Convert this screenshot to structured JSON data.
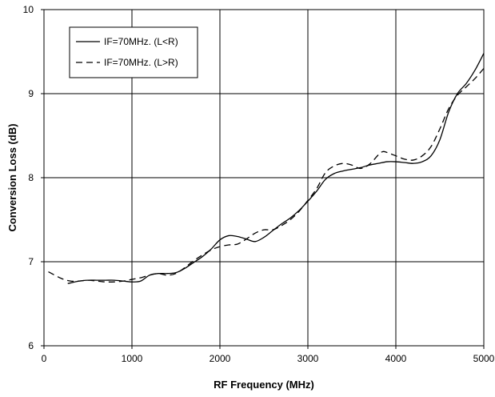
{
  "chart_data": {
    "type": "line",
    "xlabel": "RF Frequency (MHz)",
    "ylabel": "Conversion Loss (dB)",
    "xlim": [
      0,
      5000
    ],
    "ylim": [
      6,
      10
    ],
    "xticks": [
      0,
      1000,
      2000,
      3000,
      4000,
      5000
    ],
    "yticks": [
      6,
      7,
      8,
      9,
      10
    ],
    "xtick_labels": [
      "0",
      "1000",
      "2000",
      "3000",
      "4000",
      "5000"
    ],
    "ytick_labels": [
      "6",
      "7",
      "8",
      "9",
      "10"
    ],
    "grid": true,
    "legend_position": "top-left",
    "series": [
      {
        "name": "IF=70MHz. (L<R)",
        "style": "solid",
        "color": "#000000",
        "x": [
          270,
          400,
          500,
          600,
          700,
          800,
          900,
          1000,
          1100,
          1200,
          1300,
          1400,
          1500,
          1600,
          1700,
          1800,
          1900,
          2000,
          2100,
          2200,
          2300,
          2400,
          2500,
          2600,
          2700,
          2800,
          2900,
          3000,
          3100,
          3200,
          3300,
          3400,
          3500,
          3600,
          3700,
          3800,
          3900,
          4000,
          4100,
          4200,
          4300,
          4400,
          4500,
          4600,
          4700,
          4800,
          4900,
          5000
        ],
        "y": [
          6.74,
          6.77,
          6.78,
          6.78,
          6.78,
          6.78,
          6.77,
          6.76,
          6.77,
          6.84,
          6.86,
          6.86,
          6.87,
          6.92,
          6.99,
          7.06,
          7.15,
          7.26,
          7.31,
          7.3,
          7.27,
          7.24,
          7.29,
          7.37,
          7.45,
          7.52,
          7.61,
          7.72,
          7.84,
          7.98,
          8.05,
          8.08,
          8.1,
          8.12,
          8.15,
          8.17,
          8.19,
          8.19,
          8.18,
          8.17,
          8.19,
          8.26,
          8.45,
          8.78,
          9.0,
          9.12,
          9.28,
          9.48
        ]
      },
      {
        "name": "IF=70MHz. (L>R)",
        "style": "dashed",
        "color": "#000000",
        "x": [
          50,
          200,
          300,
          400,
          500,
          600,
          700,
          800,
          900,
          1000,
          1100,
          1200,
          1300,
          1400,
          1500,
          1600,
          1700,
          1800,
          1900,
          2000,
          2100,
          2200,
          2300,
          2400,
          2500,
          2600,
          2700,
          2800,
          2900,
          3000,
          3100,
          3200,
          3300,
          3400,
          3500,
          3600,
          3700,
          3800,
          3850,
          3900,
          4000,
          4100,
          4200,
          4300,
          4400,
          4500,
          4600,
          4700,
          4800,
          4900,
          5000
        ],
        "y": [
          6.88,
          6.8,
          6.77,
          6.77,
          6.78,
          6.77,
          6.76,
          6.76,
          6.77,
          6.79,
          6.81,
          6.84,
          6.86,
          6.84,
          6.86,
          6.93,
          7.01,
          7.08,
          7.14,
          7.18,
          7.2,
          7.21,
          7.27,
          7.34,
          7.38,
          7.38,
          7.43,
          7.5,
          7.6,
          7.73,
          7.87,
          8.06,
          8.14,
          8.17,
          8.15,
          8.11,
          8.16,
          8.27,
          8.31,
          8.3,
          8.26,
          8.22,
          8.21,
          8.26,
          8.37,
          8.58,
          8.82,
          8.98,
          9.08,
          9.18,
          9.3
        ]
      }
    ]
  }
}
